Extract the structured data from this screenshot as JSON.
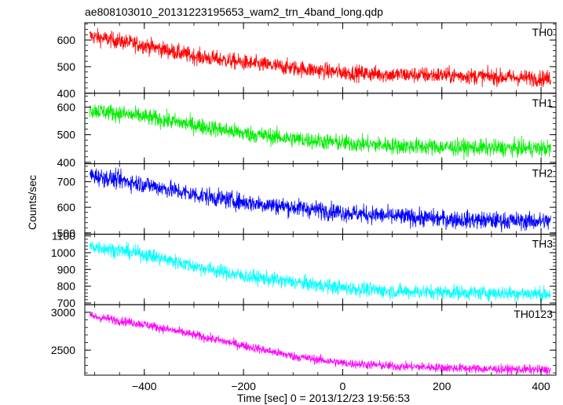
{
  "chart_data": {
    "type": "line",
    "title": "ae808103010_20131223195653_wam2_trn_4band_long.qdp",
    "xlabel": "Time [sec] 0 = 2013/12/23 19:56:53",
    "ylabel": "Counts/sec",
    "xlim": [
      -520,
      430
    ],
    "xticks": [
      -400,
      -200,
      0,
      200,
      400
    ],
    "x_start": -510,
    "x_end": 420,
    "panels": [
      {
        "name": "TH0",
        "color": "#ff0000",
        "ylim": [
          400,
          665
        ],
        "yticks": [
          400,
          500,
          600
        ],
        "trend": [
          [
            -510,
            615
          ],
          [
            -400,
            580
          ],
          [
            -300,
            540
          ],
          [
            -200,
            515
          ],
          [
            -100,
            495
          ],
          [
            0,
            478
          ],
          [
            100,
            470
          ],
          [
            200,
            468
          ],
          [
            300,
            462
          ],
          [
            420,
            455
          ]
        ],
        "noise": 28
      },
      {
        "name": "TH1",
        "color": "#00ee00",
        "ylim": [
          395,
          650
        ],
        "yticks": [
          400,
          500,
          600
        ],
        "trend": [
          [
            -510,
            590
          ],
          [
            -400,
            565
          ],
          [
            -300,
            535
          ],
          [
            -200,
            505
          ],
          [
            -100,
            485
          ],
          [
            0,
            470
          ],
          [
            100,
            460
          ],
          [
            200,
            455
          ],
          [
            300,
            452
          ],
          [
            420,
            450
          ]
        ],
        "noise": 28
      },
      {
        "name": "TH2",
        "color": "#0000ff",
        "ylim": [
          495,
          770
        ],
        "yticks": [
          500,
          600,
          700
        ],
        "trend": [
          [
            -510,
            725
          ],
          [
            -400,
            690
          ],
          [
            -300,
            650
          ],
          [
            -200,
            620
          ],
          [
            -100,
            600
          ],
          [
            0,
            580
          ],
          [
            100,
            565
          ],
          [
            200,
            555
          ],
          [
            300,
            548
          ],
          [
            420,
            545
          ]
        ],
        "noise": 32
      },
      {
        "name": "TH3",
        "color": "#00ffff",
        "ylim": [
          690,
          1110
        ],
        "yticks": [
          700,
          800,
          900,
          1000,
          1100
        ],
        "trend": [
          [
            -510,
            1040
          ],
          [
            -400,
            990
          ],
          [
            -300,
            920
          ],
          [
            -200,
            860
          ],
          [
            -100,
            825
          ],
          [
            0,
            790
          ],
          [
            100,
            770
          ],
          [
            200,
            765
          ],
          [
            300,
            760
          ],
          [
            420,
            755
          ]
        ],
        "noise": 40
      },
      {
        "name": "TH0123",
        "color": "#ff00ff",
        "ylim": [
          2170,
          3100
        ],
        "yticks": [
          2500,
          3000
        ],
        "trend": [
          [
            -510,
            2950
          ],
          [
            -400,
            2840
          ],
          [
            -300,
            2700
          ],
          [
            -200,
            2560
          ],
          [
            -100,
            2420
          ],
          [
            0,
            2330
          ],
          [
            100,
            2290
          ],
          [
            200,
            2270
          ],
          [
            300,
            2250
          ],
          [
            420,
            2240
          ]
        ],
        "noise": 55
      }
    ]
  }
}
